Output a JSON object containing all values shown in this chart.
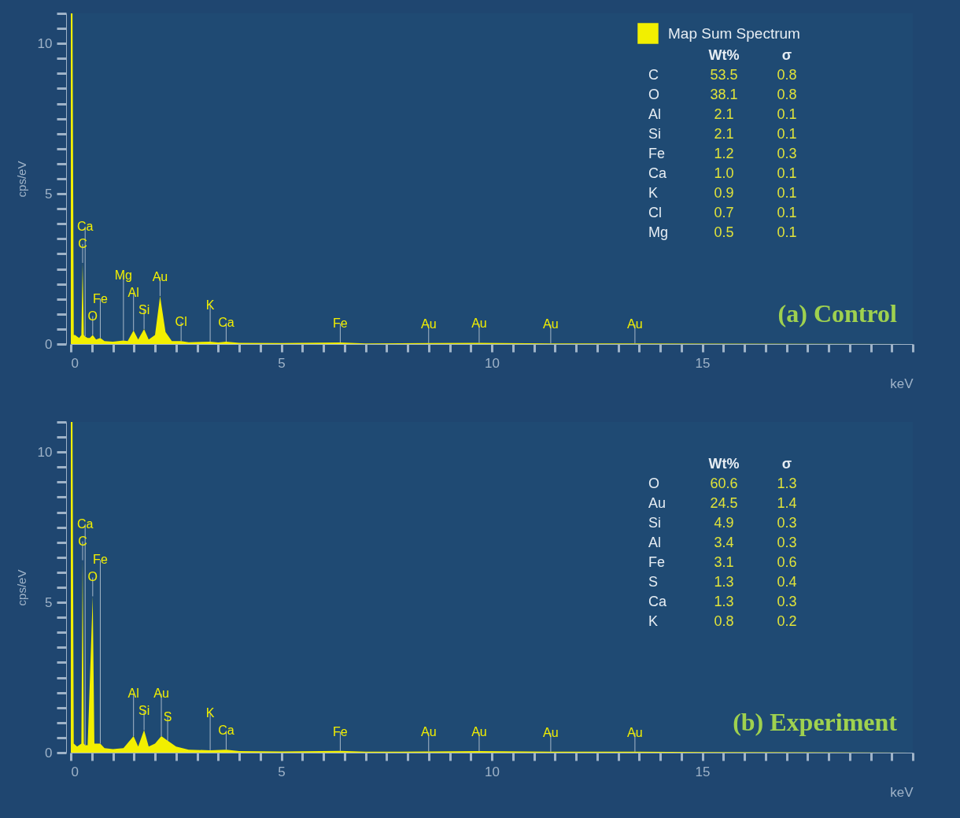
{
  "chart_data": [
    {
      "type": "area",
      "title": "(a) Control",
      "xlabel": "keV",
      "ylabel": "cps/eV",
      "legend": "top right",
      "xlim": [
        0,
        20
      ],
      "ylim": [
        0,
        11
      ],
      "xticks": [
        0,
        {
          "value": 0.5,
          "label": null
        },
        {
          "value": 1,
          "label": null
        },
        {
          "value": 1.5,
          "label": null
        },
        {
          "value": 2,
          "label": null
        },
        {
          "value": 2.5,
          "label": null
        },
        {
          "value": 3,
          "label": null
        },
        {
          "value": 3.5,
          "label": null
        },
        {
          "value": 4,
          "label": null
        },
        {
          "value": 4.5,
          "label": null
        },
        5,
        {
          "value": 5.5,
          "label": null
        },
        {
          "value": 6,
          "label": null
        },
        {
          "value": 6.5,
          "label": null
        },
        {
          "value": 7,
          "label": null
        },
        {
          "value": 7.5,
          "label": null
        },
        {
          "value": 8,
          "label": null
        },
        {
          "value": 8.5,
          "label": null
        },
        {
          "value": 9,
          "label": null
        },
        {
          "value": 9.5,
          "label": null
        },
        10,
        {
          "value": 10.5,
          "label": null
        },
        {
          "value": 11,
          "label": null
        },
        {
          "value": 11.5,
          "label": null
        },
        {
          "value": 12,
          "label": null
        },
        {
          "value": 12.5,
          "label": null
        },
        {
          "value": 13,
          "label": null
        },
        {
          "value": 13.5,
          "label": null
        },
        {
          "value": 14,
          "label": null
        },
        {
          "value": 14.5,
          "label": null
        },
        15,
        {
          "value": 15.5,
          "label": null
        },
        {
          "value": 16,
          "label": null
        },
        {
          "value": 16.5,
          "label": null
        },
        {
          "value": 17,
          "label": null
        },
        {
          "value": 17.5,
          "label": null
        },
        {
          "value": 18,
          "label": null
        },
        {
          "value": 18.5,
          "label": null
        },
        {
          "value": 19,
          "label": null
        },
        {
          "value": 19.5,
          "label": null
        },
        {
          "value": 20,
          "label": null
        }
      ],
      "yticks": [
        0,
        {
          "value": 0.5,
          "label": null
        },
        {
          "value": 1,
          "label": null
        },
        {
          "value": 1.5,
          "label": null
        },
        {
          "value": 2,
          "label": null
        },
        {
          "value": 2.5,
          "label": null
        },
        {
          "value": 3,
          "label": null
        },
        {
          "value": 3.5,
          "label": null
        },
        {
          "value": 4,
          "label": null
        },
        {
          "value": 4.5,
          "label": null
        },
        5,
        {
          "value": 5.5,
          "label": null
        },
        {
          "value": 6,
          "label": null
        },
        {
          "value": 6.5,
          "label": null
        },
        {
          "value": 7,
          "label": null
        },
        {
          "value": 7.5,
          "label": null
        },
        {
          "value": 8,
          "label": null
        },
        {
          "value": 8.5,
          "label": null
        },
        {
          "value": 9,
          "label": null
        },
        {
          "value": 9.5,
          "label": null
        },
        10,
        {
          "value": 10.5,
          "label": null
        },
        {
          "value": 11,
          "label": null
        }
      ],
      "x": [
        0,
        0.04,
        0.07,
        0.1,
        0.15,
        0.2,
        0.25,
        0.28,
        0.31,
        0.34,
        0.4,
        0.45,
        0.52,
        0.6,
        0.7,
        0.8,
        1.0,
        1.25,
        1.35,
        1.49,
        1.6,
        1.74,
        1.85,
        2.0,
        2.12,
        2.25,
        2.4,
        2.62,
        2.8,
        3.31,
        3.5,
        3.69,
        4.0,
        5,
        6.4,
        7,
        8.5,
        9.7,
        11.4,
        13.4,
        15,
        20
      ],
      "series": [
        {
          "name": "Map Sum Spectrum",
          "color": "#f2ef00",
          "values": [
            11,
            11,
            0.3,
            0.3,
            0.25,
            0.2,
            0.3,
            2.7,
            0.3,
            0.25,
            0.2,
            0.2,
            0.3,
            0.15,
            0.2,
            0.1,
            0.08,
            0.12,
            0.1,
            0.45,
            0.15,
            0.5,
            0.15,
            0.3,
            1.6,
            0.4,
            0.1,
            0.1,
            0.06,
            0.08,
            0.05,
            0.08,
            0.04,
            0.03,
            0.05,
            0.02,
            0.03,
            0.04,
            0.02,
            0.02,
            0.01,
            0
          ]
        }
      ],
      "annotations": [
        {
          "text": "Au",
          "x": 2.12,
          "y": 1.6
        },
        {
          "text": "C",
          "x": 0.28,
          "y": 2.7
        },
        {
          "text": "Mg",
          "x": 1.25,
          "y": 0.12
        },
        {
          "text": "O",
          "x": 0.52,
          "y": 0.3
        },
        {
          "text": "Si",
          "x": 1.74,
          "y": 0.5
        },
        {
          "text": "Fe",
          "x": 0.7,
          "y": 0.2
        },
        {
          "text": "Ca",
          "x": 3.69,
          "y": 0.08
        },
        {
          "text": "Al",
          "x": 1.49,
          "y": 0.45
        },
        {
          "text": "Ca",
          "x": 0.34,
          "y": 0.25
        },
        {
          "text": "Cl",
          "x": 2.62,
          "y": 0.1
        },
        {
          "text": "K",
          "x": 3.31,
          "y": 0.08
        },
        {
          "text": "Fe",
          "x": 6.4,
          "y": 0.05
        },
        {
          "text": "Au",
          "x": 8.5,
          "y": 0.03
        },
        {
          "text": "Au",
          "x": 9.7,
          "y": 0.04
        },
        {
          "text": "Au",
          "x": 11.4,
          "y": 0.02
        },
        {
          "text": "Au",
          "x": 13.4,
          "y": 0.02
        },
        "Wt% σ",
        "C 53.5 0.8",
        "O 38.1 0.8",
        "Al 2.1 0.1",
        "Si 2.1 0.1",
        "Fe 1.2 0.3",
        "Ca 1.0 0.1",
        "K 0.9 0.1",
        "Cl 0.7 0.1",
        "Mg 0.5 0.1"
      ]
    },
    {
      "type": "area",
      "title": "(b) Experiment",
      "xlabel": "keV",
      "ylabel": "cps/eV",
      "legend": "top right",
      "xlim": [
        0,
        20
      ],
      "ylim": [
        0,
        11
      ],
      "xticks": [
        0,
        {
          "value": 0.5,
          "label": null
        },
        {
          "value": 1,
          "label": null
        },
        {
          "value": 1.5,
          "label": null
        },
        {
          "value": 2,
          "label": null
        },
        {
          "value": 2.5,
          "label": null
        },
        {
          "value": 3,
          "label": null
        },
        {
          "value": 3.5,
          "label": null
        },
        {
          "value": 4,
          "label": null
        },
        {
          "value": 4.5,
          "label": null
        },
        5,
        {
          "value": 5.5,
          "label": null
        },
        {
          "value": 6,
          "label": null
        },
        {
          "value": 6.5,
          "label": null
        },
        {
          "value": 7,
          "label": null
        },
        {
          "value": 7.5,
          "label": null
        },
        {
          "value": 8,
          "label": null
        },
        {
          "value": 8.5,
          "label": null
        },
        {
          "value": 9,
          "label": null
        },
        {
          "value": 9.5,
          "label": null
        },
        10,
        {
          "value": 10.5,
          "label": null
        },
        {
          "value": 11,
          "label": null
        },
        {
          "value": 11.5,
          "label": null
        },
        {
          "value": 12,
          "label": null
        },
        {
          "value": 12.5,
          "label": null
        },
        {
          "value": 13,
          "label": null
        },
        {
          "value": 13.5,
          "label": null
        },
        {
          "value": 14,
          "label": null
        },
        {
          "value": 14.5,
          "label": null
        },
        15,
        {
          "value": 15.5,
          "label": null
        },
        {
          "value": 16,
          "label": null
        },
        {
          "value": 16.5,
          "label": null
        },
        {
          "value": 17,
          "label": null
        },
        {
          "value": 17.5,
          "label": null
        },
        {
          "value": 18,
          "label": null
        },
        {
          "value": 18.5,
          "label": null
        },
        {
          "value": 19,
          "label": null
        },
        {
          "value": 19.5,
          "label": null
        },
        {
          "value": 20,
          "label": null
        }
      ],
      "yticks": [
        0,
        {
          "value": 0.5,
          "label": null
        },
        {
          "value": 1,
          "label": null
        },
        {
          "value": 1.5,
          "label": null
        },
        {
          "value": 2,
          "label": null
        },
        {
          "value": 2.5,
          "label": null
        },
        {
          "value": 3,
          "label": null
        },
        {
          "value": 3.5,
          "label": null
        },
        {
          "value": 4,
          "label": null
        },
        {
          "value": 4.5,
          "label": null
        },
        5,
        {
          "value": 5.5,
          "label": null
        },
        {
          "value": 6,
          "label": null
        },
        {
          "value": 6.5,
          "label": null
        },
        {
          "value": 7,
          "label": null
        },
        {
          "value": 7.5,
          "label": null
        },
        {
          "value": 8,
          "label": null
        },
        {
          "value": 8.5,
          "label": null
        },
        {
          "value": 9,
          "label": null
        },
        {
          "value": 9.5,
          "label": null
        },
        10,
        {
          "value": 10.5,
          "label": null
        },
        {
          "value": 11,
          "label": null
        }
      ],
      "x": [
        0,
        0.04,
        0.07,
        0.15,
        0.25,
        0.28,
        0.31,
        0.34,
        0.4,
        0.52,
        0.56,
        0.7,
        0.8,
        1.0,
        1.25,
        1.49,
        1.6,
        1.74,
        1.85,
        2.0,
        2.15,
        2.3,
        2.5,
        2.8,
        3.31,
        3.69,
        4,
        5,
        6.4,
        7,
        8.5,
        9.7,
        11.4,
        13.4,
        15,
        20
      ],
      "series": [
        {
          "name": "Map Sum Spectrum",
          "color": "#f2ef00",
          "values": [
            11,
            11,
            0.3,
            0.2,
            0.3,
            6.4,
            0.3,
            0.25,
            0.25,
            5.2,
            0.3,
            0.3,
            0.15,
            0.12,
            0.15,
            0.55,
            0.2,
            0.75,
            0.2,
            0.3,
            0.55,
            0.4,
            0.2,
            0.1,
            0.08,
            0.1,
            0.05,
            0.04,
            0.06,
            0.03,
            0.04,
            0.05,
            0.03,
            0.03,
            0.02,
            0
          ]
        }
      ],
      "annotations": [
        {
          "text": "C",
          "x": 0.28,
          "y": 6.4
        },
        {
          "text": "O",
          "x": 0.52,
          "y": 5.2
        },
        {
          "text": "Au",
          "x": 2.15,
          "y": 0.55
        },
        {
          "text": "Si",
          "x": 1.74,
          "y": 0.75
        },
        {
          "text": "Fe",
          "x": 0.7,
          "y": 0.3
        },
        {
          "text": "Al",
          "x": 1.49,
          "y": 0.55
        },
        {
          "text": "S",
          "x": 2.3,
          "y": 0.4
        },
        {
          "text": "K",
          "x": 3.31,
          "y": 0.08
        },
        {
          "text": "Ca",
          "x": 3.69,
          "y": 0.1
        },
        {
          "text": "Ca",
          "x": 0.34,
          "y": 0.25
        },
        {
          "text": "Fe",
          "x": 6.4,
          "y": 0.06
        },
        {
          "text": "Au",
          "x": 8.5,
          "y": 0.04
        },
        {
          "text": "Au",
          "x": 9.7,
          "y": 0.05
        },
        {
          "text": "Au",
          "x": 11.4,
          "y": 0.03
        },
        {
          "text": "Au",
          "x": 13.4,
          "y": 0.03
        },
        "Wt% σ",
        "O 60.6 1.3",
        "Au 24.5 1.4",
        "Si 4.9 0.3",
        "Al 3.4 0.3",
        "Fe 3.1 0.6",
        "S 1.3 0.4",
        "Ca 1.3 0.3",
        "K 0.8 0.2"
      ]
    }
  ]
}
